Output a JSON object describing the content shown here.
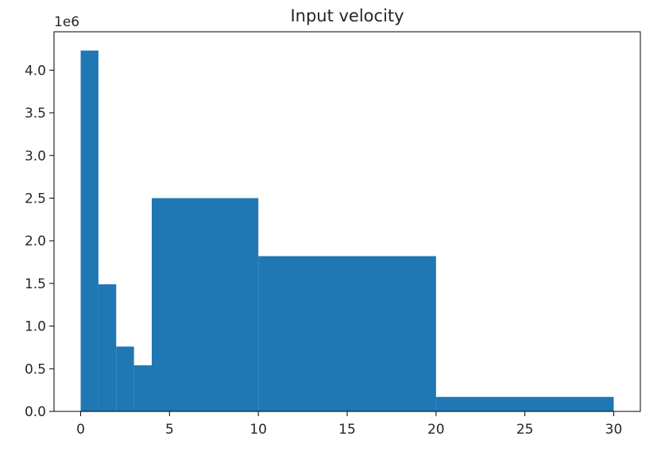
{
  "chart_data": {
    "type": "bar",
    "title": "Input velocity",
    "xlabel": "",
    "ylabel": "",
    "y_offset_label": "1e6",
    "xlim": [
      -1.5,
      31.5
    ],
    "ylim": [
      0,
      4.45
    ],
    "grid": false,
    "legend": "none",
    "bar_color": "#1f77b4",
    "bins": [
      {
        "x0": 0,
        "x1": 1,
        "value": 4.23
      },
      {
        "x0": 1,
        "x1": 2,
        "value": 1.49
      },
      {
        "x0": 2,
        "x1": 3,
        "value": 0.76
      },
      {
        "x0": 3,
        "x1": 4,
        "value": 0.54
      },
      {
        "x0": 4,
        "x1": 10,
        "value": 2.5
      },
      {
        "x0": 10,
        "x1": 20,
        "value": 1.82
      },
      {
        "x0": 20,
        "x1": 30,
        "value": 0.17
      }
    ],
    "x_ticks": [
      0,
      5,
      10,
      15,
      20,
      25,
      30
    ],
    "x_tick_labels": [
      "0",
      "5",
      "10",
      "15",
      "20",
      "25",
      "30"
    ],
    "y_ticks": [
      0,
      0.5,
      1.0,
      1.5,
      2.0,
      2.5,
      3.0,
      3.5,
      4.0
    ],
    "y_tick_labels": [
      "0.0",
      "0.5",
      "1.0",
      "1.5",
      "2.0",
      "2.5",
      "3.0",
      "3.5",
      "4.0"
    ]
  }
}
